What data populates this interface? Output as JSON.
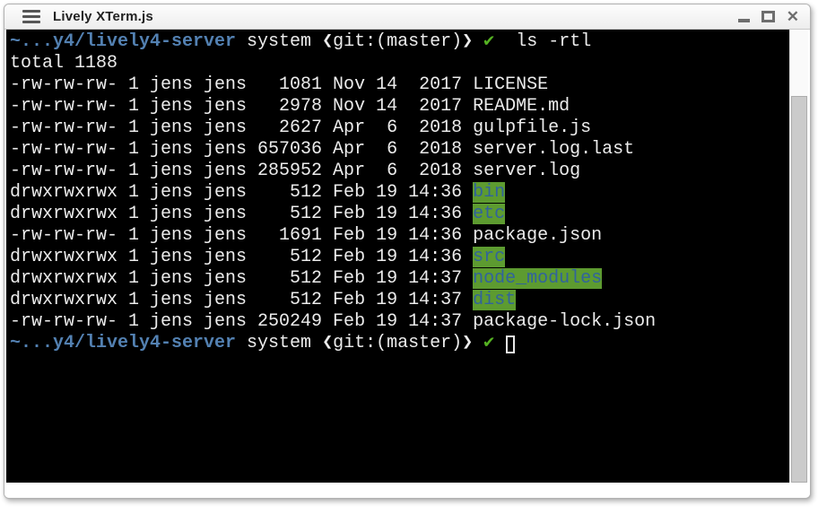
{
  "window": {
    "title": "Lively XTerm.js",
    "controls": {
      "minimize": "minimize",
      "maximize": "maximize",
      "close_glyph": "✕"
    }
  },
  "colors": {
    "terminal_bg": "#000000",
    "terminal_fg": "#ececec",
    "prompt_blue": "#5381b2",
    "check_green": "#55b222",
    "dir_bg_green": "#5d9b30",
    "dir_fg_blue": "#31639c"
  },
  "terminal": {
    "prompt": {
      "path": "~...y4/lively4-server",
      "context": "system",
      "git": "❮git:(master)❯",
      "status_check": "✔"
    },
    "command": "ls -rtl",
    "total_line": "total 1188",
    "lines": [
      {
        "segs": [
          {
            "t": "~...y4/lively4-server",
            "c": "b"
          },
          {
            "t": " system ❮git:(master)❯ ",
            "c": "p"
          },
          {
            "t": "✔",
            "c": "g"
          },
          {
            "t": "  ls -rtl",
            "c": "p"
          }
        ]
      },
      {
        "segs": [
          {
            "t": "total 1188",
            "c": "p"
          }
        ]
      },
      {
        "segs": [
          {
            "t": "-rw-rw-rw- 1 jens jens   1081 Nov 14  2017 ",
            "c": "p"
          },
          {
            "t": "LICENSE",
            "c": "f"
          }
        ]
      },
      {
        "segs": [
          {
            "t": "-rw-rw-rw- 1 jens jens   2978 Nov 14  2017 ",
            "c": "p"
          },
          {
            "t": "README.md",
            "c": "f"
          }
        ]
      },
      {
        "segs": [
          {
            "t": "-rw-rw-rw- 1 jens jens   2627 Apr  6  2018 ",
            "c": "p"
          },
          {
            "t": "gulpfile.js",
            "c": "f"
          }
        ]
      },
      {
        "segs": [
          {
            "t": "-rw-rw-rw- 1 jens jens 657036 Apr  6  2018 ",
            "c": "p"
          },
          {
            "t": "server.log.last",
            "c": "f"
          }
        ]
      },
      {
        "segs": [
          {
            "t": "-rw-rw-rw- 1 jens jens 285952 Apr  6  2018 ",
            "c": "p"
          },
          {
            "t": "server.log",
            "c": "f"
          }
        ]
      },
      {
        "segs": [
          {
            "t": "drwxrwxrwx 1 jens jens    512 Feb 19 14:36 ",
            "c": "p"
          },
          {
            "t": "bin",
            "c": "d"
          }
        ]
      },
      {
        "segs": [
          {
            "t": "drwxrwxrwx 1 jens jens    512 Feb 19 14:36 ",
            "c": "p"
          },
          {
            "t": "etc",
            "c": "d"
          }
        ]
      },
      {
        "segs": [
          {
            "t": "-rw-rw-rw- 1 jens jens   1691 Feb 19 14:36 ",
            "c": "p"
          },
          {
            "t": "package.json",
            "c": "f"
          }
        ]
      },
      {
        "segs": [
          {
            "t": "drwxrwxrwx 1 jens jens    512 Feb 19 14:36 ",
            "c": "p"
          },
          {
            "t": "src",
            "c": "d"
          }
        ]
      },
      {
        "segs": [
          {
            "t": "drwxrwxrwx 1 jens jens    512 Feb 19 14:37 ",
            "c": "p"
          },
          {
            "t": "node_modules",
            "c": "d"
          }
        ]
      },
      {
        "segs": [
          {
            "t": "drwxrwxrwx 1 jens jens    512 Feb 19 14:37 ",
            "c": "p"
          },
          {
            "t": "dist",
            "c": "d"
          }
        ]
      },
      {
        "segs": [
          {
            "t": "-rw-rw-rw- 1 jens jens 250249 Feb 19 14:37 ",
            "c": "p"
          },
          {
            "t": "package-lock.json",
            "c": "f"
          }
        ]
      },
      {
        "segs": [
          {
            "t": "~...y4/lively4-server",
            "c": "b"
          },
          {
            "t": " system ❮git:(master)❯ ",
            "c": "p"
          },
          {
            "t": "✔",
            "c": "g"
          },
          {
            "t": " ",
            "c": "p"
          }
        ],
        "cursor": true
      }
    ]
  }
}
